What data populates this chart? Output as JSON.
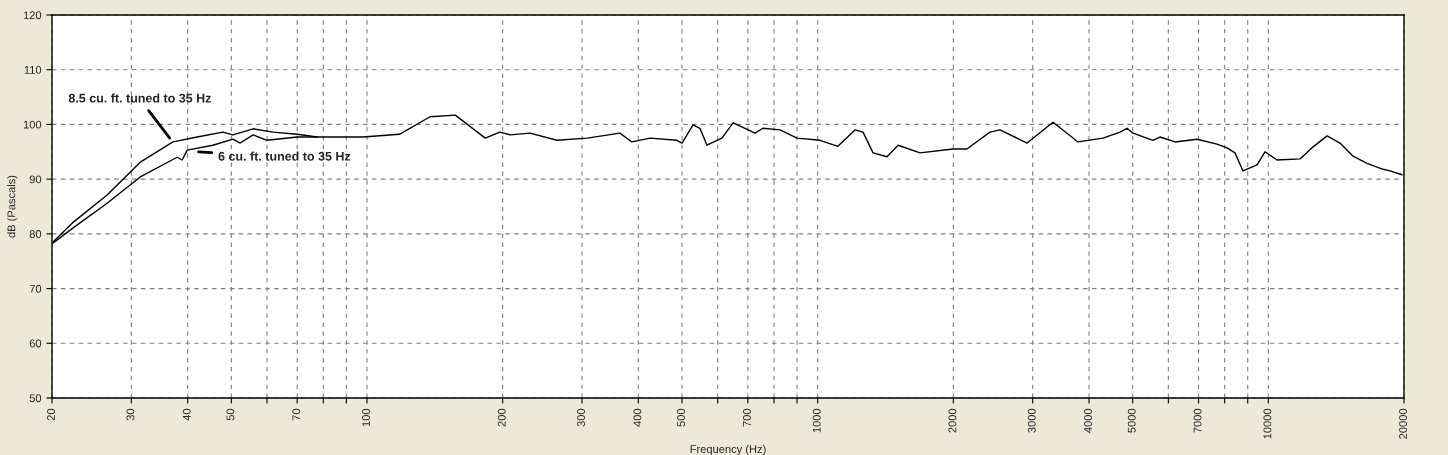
{
  "chart_data": {
    "type": "line",
    "xlabel": "Frequency (Hz)",
    "ylabel": "dB (Pascals)",
    "log": "x",
    "grid": true,
    "legend": false,
    "marker": "none",
    "line_style": "solid",
    "xlim": [
      20,
      20000
    ],
    "ylim": [
      50,
      120
    ],
    "xticks": [
      20,
      30,
      40,
      50,
      {
        "value": 60,
        "label": null
      },
      70,
      {
        "value": 80,
        "label": null
      },
      {
        "value": 90,
        "label": null
      },
      100,
      200,
      300,
      400,
      500,
      {
        "value": 600,
        "label": null
      },
      700,
      {
        "value": 800,
        "label": null
      },
      {
        "value": 900,
        "label": null
      },
      1000,
      2000,
      3000,
      4000,
      5000,
      {
        "value": 6000,
        "label": null
      },
      7000,
      {
        "value": 8000,
        "label": null
      },
      {
        "value": 9000,
        "label": null
      },
      10000,
      20000
    ],
    "yticks": [
      50,
      60,
      70,
      80,
      90,
      100,
      110,
      120
    ],
    "series": [
      {
        "color": "#000000",
        "x": [
          20.1,
          22.2,
          26.5,
          31.4,
          37.1,
          42,
          47.9,
          50.4,
          55.9,
          61.9,
          70,
          77.5,
          82.8,
          98,
          118,
          138,
          157,
          183,
          197,
          208,
          230,
          264,
          308,
          364,
          387,
          425,
          487,
          500,
          529,
          548,
          568,
          613,
          639,
          649,
          690,
          726,
          756,
          825,
          900,
          1012,
          1109,
          1210,
          1261,
          1327,
          1425,
          1508,
          1687,
          1997,
          2144,
          2411,
          2538,
          2915,
          3329,
          3782,
          4297,
          4688,
          4859,
          5010,
          5546,
          5748,
          6208,
          6946,
          7694,
          8098,
          8434,
          8786,
          9438,
          9832,
          10452,
          11758,
          12568,
          13502,
          14422,
          15418,
          16560,
          17968,
          18622,
          19798
        ],
        "values": [
          78.5,
          82,
          87.1,
          93.1,
          96.8,
          97.7,
          98.6,
          98.1,
          99.2,
          98.6,
          98.2,
          97.7,
          97.7,
          97.7,
          98.2,
          101.4,
          101.7,
          97.5,
          98.6,
          98.1,
          98.4,
          97.1,
          97.5,
          98.4,
          96.8,
          97.5,
          97.1,
          96.6,
          99.9,
          99.3,
          96.2,
          97.5,
          99.5,
          100.3,
          99.3,
          98.4,
          99.3,
          99,
          97.5,
          97.1,
          96,
          99,
          98.6,
          94.8,
          94.1,
          96.2,
          94.8,
          95.5,
          95.5,
          98.6,
          99,
          96.6,
          100.4,
          96.8,
          97.5,
          98.6,
          99.3,
          98.4,
          97.1,
          97.7,
          96.8,
          97.3,
          96.4,
          95.7,
          94.8,
          91.5,
          92.6,
          95,
          93.5,
          93.7,
          95.9,
          97.9,
          96.6,
          94.2,
          92.9,
          91.8,
          91.5,
          90.8
        ]
      },
      {
        "color": "#000000",
        "x": [
          20.1,
          22.2,
          26.5,
          31.4,
          37.9,
          38.9,
          39.9,
          45.5,
          50.4,
          52.3,
          55.9,
          60,
          70,
          77.5
        ],
        "values": [
          78.3,
          81,
          85.6,
          90.4,
          94,
          93.5,
          95.3,
          96.2,
          97.3,
          96.6,
          98.1,
          97.1,
          97.7,
          97.7
        ]
      }
    ],
    "annotations": [
      {
        "text": "8.5 cu. ft. tuned to 35 Hz",
        "x": 36.5,
        "y": 97.5
      },
      {
        "text": "6 cu. ft. tuned to 35 Hz",
        "x": 42.3,
        "y": 95
      }
    ]
  }
}
